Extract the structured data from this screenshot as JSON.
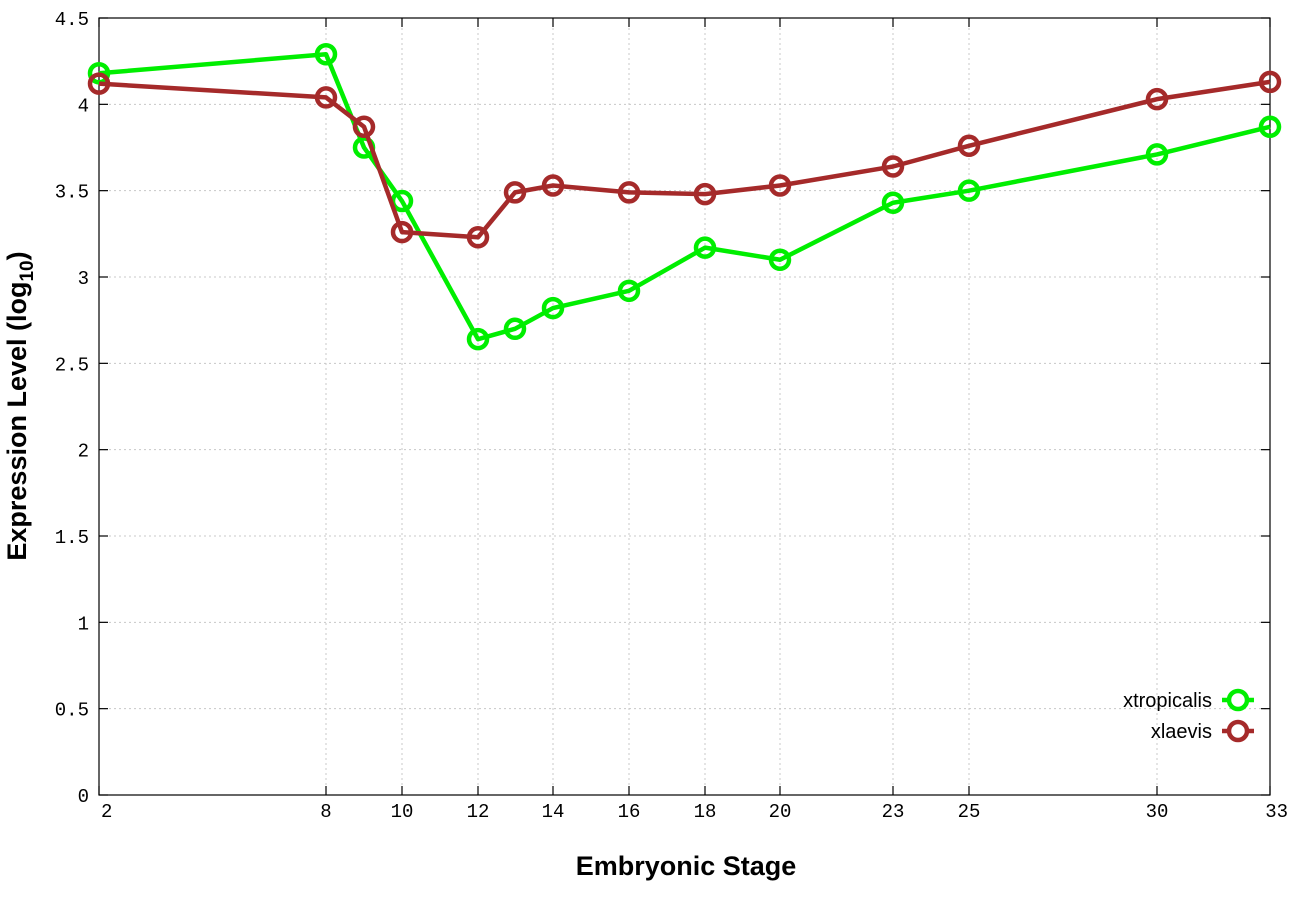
{
  "chart_data": {
    "type": "line",
    "xlabel": "Embryonic Stage",
    "ylabel_main": "Expression Level (log",
    "ylabel_sub": "10",
    "ylabel_close": ")",
    "x_ticks": [
      "2",
      "8",
      "10",
      "12",
      "14",
      "16",
      "18",
      "20",
      "23",
      "25",
      "30",
      "33"
    ],
    "y_ticks": [
      "0",
      "0.5",
      "1",
      "1.5",
      "2",
      "2.5",
      "3",
      "3.5",
      "4",
      "4.5"
    ],
    "ylim": [
      0,
      4.5
    ],
    "grid": true,
    "legend_position": "bottom-right",
    "series": [
      {
        "name": "xtropicalis",
        "color": "#00ee00",
        "points": [
          {
            "x": "2",
            "y": 4.18
          },
          {
            "x": "8",
            "y": 4.29
          },
          {
            "x": "9",
            "y": 3.75
          },
          {
            "x": "10",
            "y": 3.44
          },
          {
            "x": "12",
            "y": 2.64
          },
          {
            "x": "13",
            "y": 2.7
          },
          {
            "x": "14",
            "y": 2.82
          },
          {
            "x": "16",
            "y": 2.92
          },
          {
            "x": "18",
            "y": 3.17
          },
          {
            "x": "20",
            "y": 3.1
          },
          {
            "x": "23",
            "y": 3.43
          },
          {
            "x": "25",
            "y": 3.5
          },
          {
            "x": "30",
            "y": 3.71
          },
          {
            "x": "33",
            "y": 3.87
          }
        ]
      },
      {
        "name": "xlaevis",
        "color": "#a52a2a",
        "points": [
          {
            "x": "2",
            "y": 4.12
          },
          {
            "x": "8",
            "y": 4.04
          },
          {
            "x": "9",
            "y": 3.87
          },
          {
            "x": "10",
            "y": 3.26
          },
          {
            "x": "12",
            "y": 3.23
          },
          {
            "x": "13",
            "y": 3.49
          },
          {
            "x": "14",
            "y": 3.53
          },
          {
            "x": "16",
            "y": 3.49
          },
          {
            "x": "18",
            "y": 3.48
          },
          {
            "x": "20",
            "y": 3.53
          },
          {
            "x": "23",
            "y": 3.64
          },
          {
            "x": "25",
            "y": 3.76
          },
          {
            "x": "30",
            "y": 4.03
          },
          {
            "x": "33",
            "y": 4.13
          }
        ]
      }
    ]
  }
}
